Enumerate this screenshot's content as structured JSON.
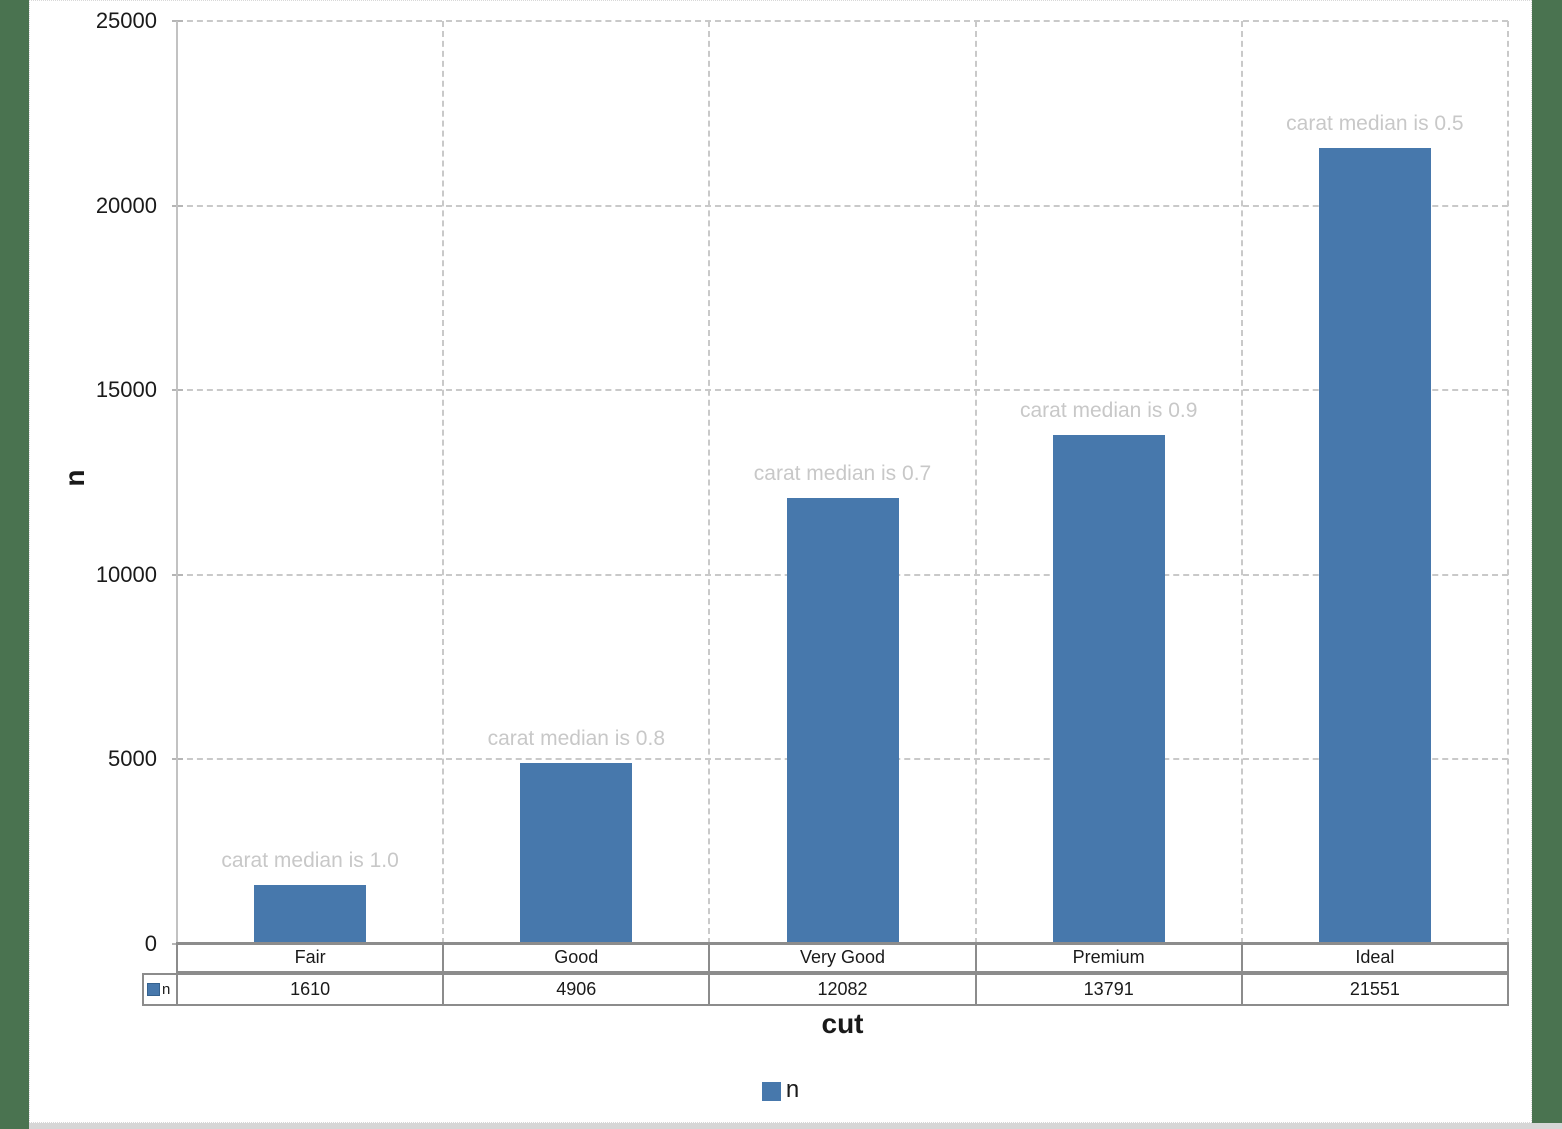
{
  "frame": {
    "background_color": "#4A7350",
    "bottom_strip_color": "#D6D6D6"
  },
  "chart_data": {
    "type": "bar",
    "categories": [
      "Fair",
      "Good",
      "Very Good",
      "Premium",
      "Ideal"
    ],
    "series": [
      {
        "name": "n",
        "values": [
          1610,
          4906,
          12082,
          13791,
          21551
        ]
      }
    ],
    "annotations": [
      "carat median is 1.0",
      "carat median is 0.8",
      "carat median is 0.7",
      "carat median is 0.9",
      "carat median is 0.5"
    ],
    "title": "",
    "xlabel": "cut",
    "ylabel": "n",
    "ylim": [
      0,
      25000
    ],
    "yticks": [
      0,
      5000,
      10000,
      15000,
      20000,
      25000
    ],
    "grid": true,
    "legend_position": "bottom",
    "legend_label": "n",
    "bar_color": "#4778AC",
    "bar_border_color": "#35628F",
    "annotation_color": "#C8C8C8"
  },
  "table": {
    "legend_key_label": "n"
  }
}
